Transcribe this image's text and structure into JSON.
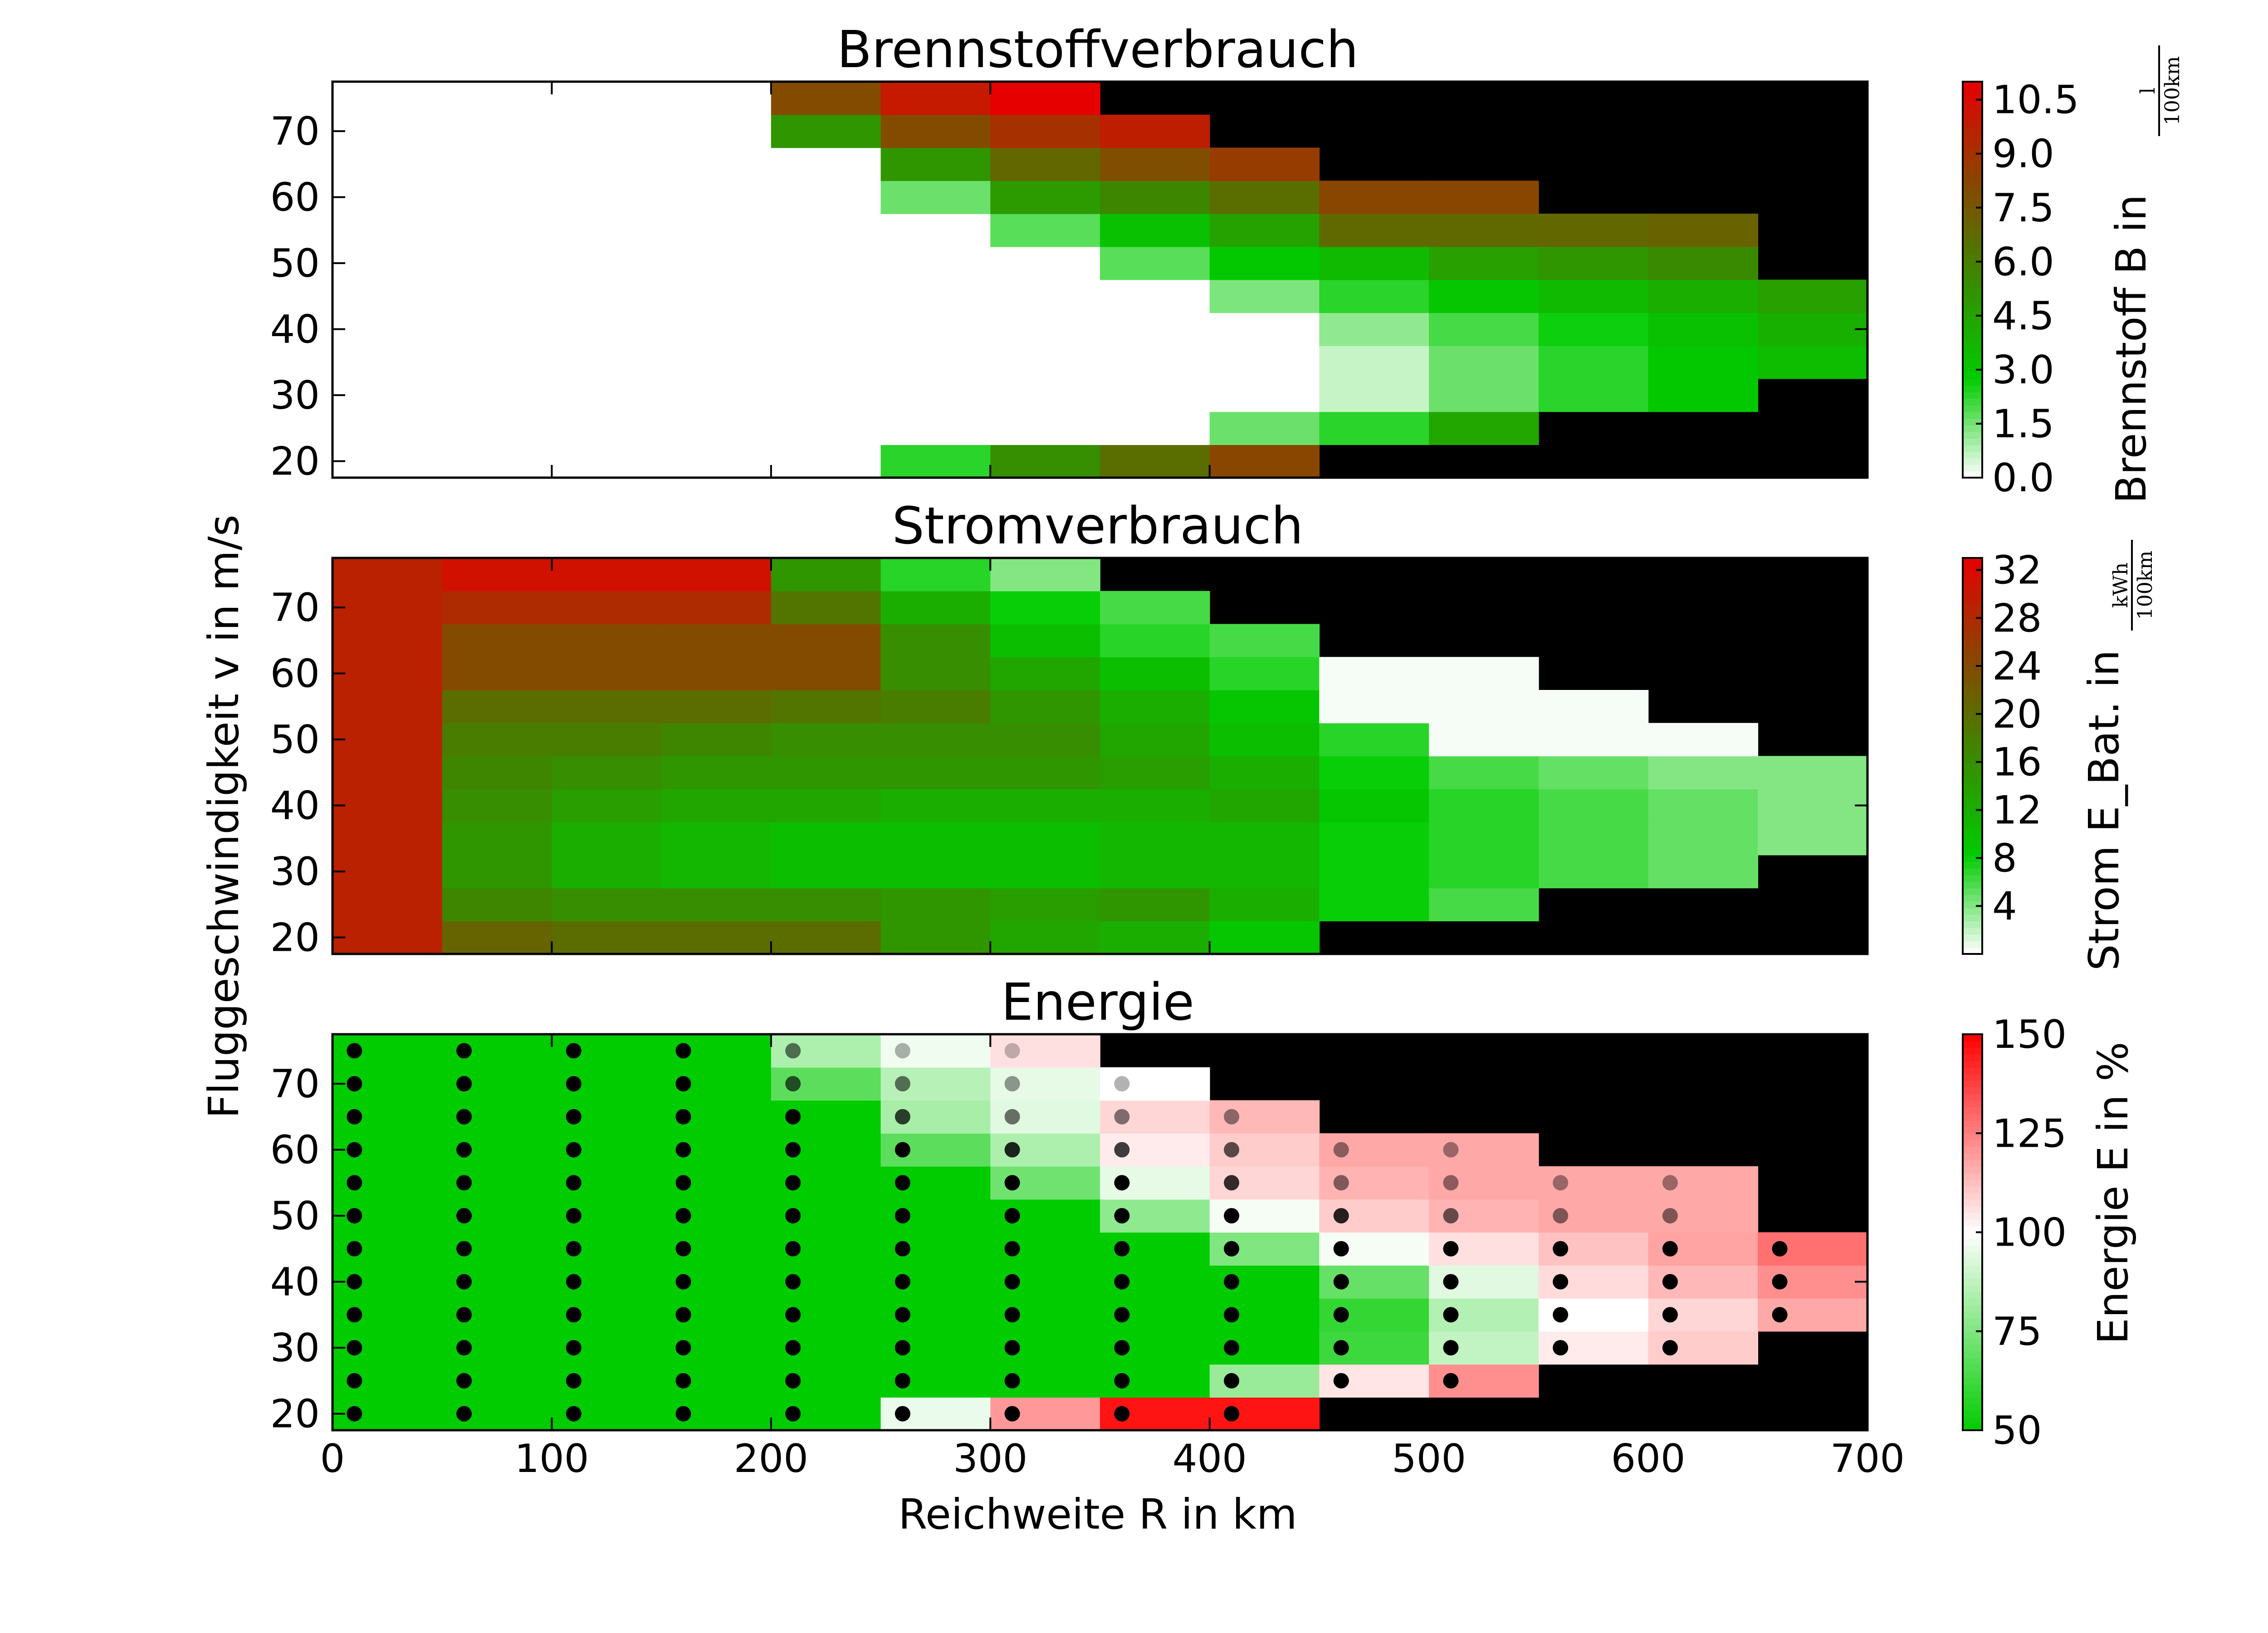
{
  "chart_data": {
    "type": "heatmap",
    "x_label": "Reichweite R in km",
    "y_label": "Fluggeschwindigkeit v in m/s",
    "x_ticks": [
      0,
      100,
      200,
      300,
      400,
      500,
      600,
      700
    ],
    "y_ticks": [
      20,
      30,
      40,
      50,
      60,
      70
    ],
    "xlim": [
      0,
      700
    ],
    "ylim": [
      17.5,
      77.5
    ],
    "x_bins": [
      0,
      50,
      100,
      150,
      200,
      250,
      300,
      350,
      400,
      450,
      500,
      550,
      600,
      650,
      700
    ],
    "y_bins": [
      17.5,
      22.5,
      27.5,
      32.5,
      37.5,
      42.5,
      47.5,
      52.5,
      57.5,
      62.5,
      67.5,
      72.5,
      77.5
    ],
    "y_centers": [
      20,
      25,
      30,
      35,
      40,
      45,
      50,
      55,
      60,
      65,
      70,
      75
    ],
    "masked_color": "#000000",
    "panels": [
      {
        "title": "Brennstoffverbrauch",
        "colorbar_label": "Brennstoff B in",
        "colorbar_unit_num": "l",
        "colorbar_unit_den": "100km",
        "colorbar_ticks": [
          "0.0",
          "1.5",
          "3.0",
          "4.5",
          "6.0",
          "7.5",
          "9.0",
          "10.5"
        ],
        "vmin": 0,
        "vmax": 11,
        "colorscale": [
          "#ffffff",
          "#00cc00",
          "#3a8a00",
          "#8a4500",
          "#e60000"
        ],
        "values": [
          [
            0,
            0,
            0,
            0,
            0,
            2.3,
            5.3,
            6.6,
            8.2,
            null,
            null,
            null,
            null,
            null
          ],
          [
            0,
            0,
            0,
            0,
            0,
            0,
            0,
            0,
            1.6,
            2.3,
            4.3,
            null,
            null,
            null
          ],
          [
            0,
            0,
            0,
            0,
            0,
            0,
            0,
            0,
            0,
            0.6,
            1.6,
            2.3,
            2.9,
            null
          ],
          [
            0,
            0,
            0,
            0,
            0,
            0,
            0,
            0,
            0,
            0.6,
            1.6,
            2.3,
            2.9,
            3.4
          ],
          [
            0,
            0,
            0,
            0,
            0,
            0,
            0,
            0,
            0,
            1.2,
            2.0,
            2.6,
            3.2,
            3.9
          ],
          [
            0,
            0,
            0,
            0,
            0,
            0,
            0,
            0,
            1.4,
            2.3,
            3.0,
            3.5,
            4.0,
            4.6
          ],
          [
            0,
            0,
            0,
            0,
            0,
            0,
            0,
            1.8,
            2.9,
            3.5,
            4.6,
            5.0,
            5.5,
            null
          ],
          [
            0,
            0,
            0,
            0,
            0,
            0,
            1.8,
            3.2,
            4.5,
            6.8,
            6.8,
            6.9,
            7.1,
            null
          ],
          [
            0,
            0,
            0,
            0,
            0,
            1.6,
            4.8,
            5.6,
            6.6,
            8.2,
            8.2,
            null,
            null,
            null
          ],
          [
            0,
            0,
            0,
            0,
            0,
            5.0,
            6.9,
            7.9,
            8.6,
            null,
            null,
            null,
            null,
            null
          ],
          [
            0,
            0,
            0,
            0,
            5.0,
            8.0,
            9.1,
            9.8,
            null,
            null,
            null,
            null,
            null,
            null
          ],
          [
            0,
            0,
            0,
            0,
            8.0,
            10.0,
            11.0,
            null,
            null,
            null,
            null,
            null,
            null,
            null
          ]
        ]
      },
      {
        "title": "Stromverbrauch",
        "colorbar_label": "Strom E_Bat. in",
        "colorbar_unit_num": "kWh",
        "colorbar_unit_den": "100km",
        "colorbar_ticks": [
          "4",
          "8",
          "12",
          "16",
          "20",
          "24",
          "28",
          "32"
        ],
        "vmin": 0,
        "vmax": 33,
        "colorscale": [
          "#ffffff",
          "#00cc00",
          "#3a8a00",
          "#8a4500",
          "#e60000"
        ],
        "values": [
          [
            29,
            21,
            20,
            20,
            20,
            15,
            13,
            12,
            9,
            null,
            null,
            null,
            null,
            null
          ],
          [
            29,
            17,
            16,
            16,
            16,
            15,
            14,
            15,
            12,
            8,
            6,
            null,
            null,
            null
          ],
          [
            29,
            15,
            12,
            11,
            10,
            10,
            10,
            11,
            11,
            8,
            7,
            6,
            5,
            null
          ],
          [
            29,
            15,
            12,
            11,
            10,
            10,
            10,
            11,
            11,
            8,
            7,
            6,
            5,
            4
          ],
          [
            29,
            16,
            14,
            13,
            13,
            12,
            12,
            12,
            13,
            9,
            7,
            6,
            5,
            4
          ],
          [
            29,
            17,
            16,
            15,
            15,
            15,
            15,
            14,
            12,
            8,
            6,
            5,
            4,
            4
          ],
          [
            29,
            18,
            18,
            17,
            16,
            16,
            16,
            13,
            10,
            7,
            0.3,
            0.3,
            0.3,
            null
          ],
          [
            29,
            20,
            20,
            20,
            19,
            18,
            15,
            12,
            9,
            0.3,
            0.3,
            0.3,
            null,
            null
          ],
          [
            29,
            24,
            24,
            24,
            24,
            16,
            13,
            10,
            7,
            0.3,
            0.3,
            null,
            null,
            null
          ],
          [
            29,
            24,
            24,
            24,
            24,
            16,
            10,
            7,
            6,
            null,
            null,
            null,
            null,
            null
          ],
          [
            29,
            28,
            28,
            28,
            19,
            12,
            8,
            6,
            null,
            null,
            null,
            null,
            null,
            null
          ],
          [
            29,
            31,
            31,
            31,
            15,
            7,
            4,
            null,
            null,
            null,
            null,
            null,
            null,
            null
          ]
        ]
      },
      {
        "title": "Energie",
        "colorbar_label": "Energie E in %",
        "colorbar_ticks": [
          "50",
          "75",
          "100",
          "125",
          "150"
        ],
        "vmin": 50,
        "vmax": 150,
        "colorscale": [
          "#00cc00",
          "#ffffff",
          "#ff0000"
        ],
        "values": [
          [
            50,
            50,
            50,
            50,
            50,
            96,
            120,
            146,
            146,
            null,
            null,
            null,
            null,
            null
          ],
          [
            50,
            50,
            50,
            50,
            50,
            50,
            50,
            50,
            80,
            105,
            122,
            null,
            null,
            null
          ],
          [
            50,
            50,
            50,
            50,
            50,
            50,
            50,
            50,
            50,
            62,
            88,
            104,
            110,
            null
          ],
          [
            50,
            50,
            50,
            50,
            50,
            50,
            50,
            50,
            50,
            60,
            85,
            100,
            108,
            117
          ],
          [
            50,
            50,
            50,
            50,
            50,
            50,
            50,
            50,
            50,
            70,
            94,
            107,
            114,
            122
          ],
          [
            50,
            50,
            50,
            50,
            50,
            50,
            50,
            50,
            75,
            98,
            106,
            112,
            118,
            128
          ],
          [
            50,
            50,
            50,
            50,
            50,
            50,
            50,
            78,
            98,
            110,
            115,
            117,
            117,
            null
          ],
          [
            50,
            50,
            50,
            50,
            50,
            50,
            72,
            95,
            108,
            115,
            117,
            117,
            117,
            null
          ],
          [
            50,
            50,
            50,
            50,
            50,
            68,
            84,
            104,
            110,
            117,
            117,
            null,
            null,
            null
          ],
          [
            50,
            50,
            50,
            50,
            50,
            83,
            94,
            108,
            114,
            null,
            null,
            null,
            null,
            null
          ],
          [
            50,
            50,
            50,
            50,
            68,
            86,
            95,
            100,
            null,
            null,
            null,
            null,
            null,
            null
          ],
          [
            50,
            50,
            50,
            50,
            84,
            97,
            106,
            null,
            null,
            null,
            null,
            null,
            null,
            null
          ]
        ],
        "marker_x": [
          10,
          60,
          110,
          160,
          210,
          260,
          310,
          360,
          410,
          460,
          510,
          560,
          610,
          660
        ],
        "marker_alpha": [
          [
            1,
            1,
            1,
            1,
            1,
            1,
            1,
            1,
            1,
            null,
            null,
            null,
            null,
            null
          ],
          [
            1,
            1,
            1,
            1,
            1,
            1,
            1,
            1,
            1,
            1,
            1,
            null,
            null,
            null
          ],
          [
            1,
            1,
            1,
            1,
            1,
            1,
            1,
            1,
            1,
            1,
            1,
            1,
            1,
            null
          ],
          [
            1,
            1,
            1,
            1,
            1,
            1,
            1,
            1,
            1,
            1,
            1,
            1,
            1,
            1
          ],
          [
            1,
            1,
            1,
            1,
            1,
            1,
            1,
            1,
            1,
            1,
            1,
            1,
            1,
            1
          ],
          [
            1,
            1,
            1,
            1,
            1,
            1,
            1,
            1,
            1,
            1,
            1,
            1,
            1,
            1
          ],
          [
            1,
            1,
            1,
            1,
            1,
            1,
            1,
            1,
            1,
            0.85,
            0.6,
            0.5,
            0.5,
            null
          ],
          [
            1,
            1,
            1,
            1,
            1,
            1,
            1,
            1,
            0.8,
            0.5,
            0.45,
            0.4,
            0.4,
            null
          ],
          [
            1,
            1,
            1,
            1,
            1,
            1,
            0.85,
            0.75,
            0.65,
            0.45,
            0.4,
            null,
            null,
            null
          ],
          [
            1,
            1,
            1,
            1,
            1,
            0.75,
            0.55,
            0.5,
            0.45,
            null,
            null,
            null,
            null,
            null
          ],
          [
            1,
            1,
            1,
            1,
            0.65,
            0.55,
            0.4,
            0.3,
            null,
            null,
            null,
            null,
            null,
            null
          ],
          [
            1,
            1,
            1,
            1,
            0.55,
            0.3,
            0.25,
            null,
            null,
            null,
            null,
            null,
            null,
            null
          ]
        ]
      }
    ]
  }
}
